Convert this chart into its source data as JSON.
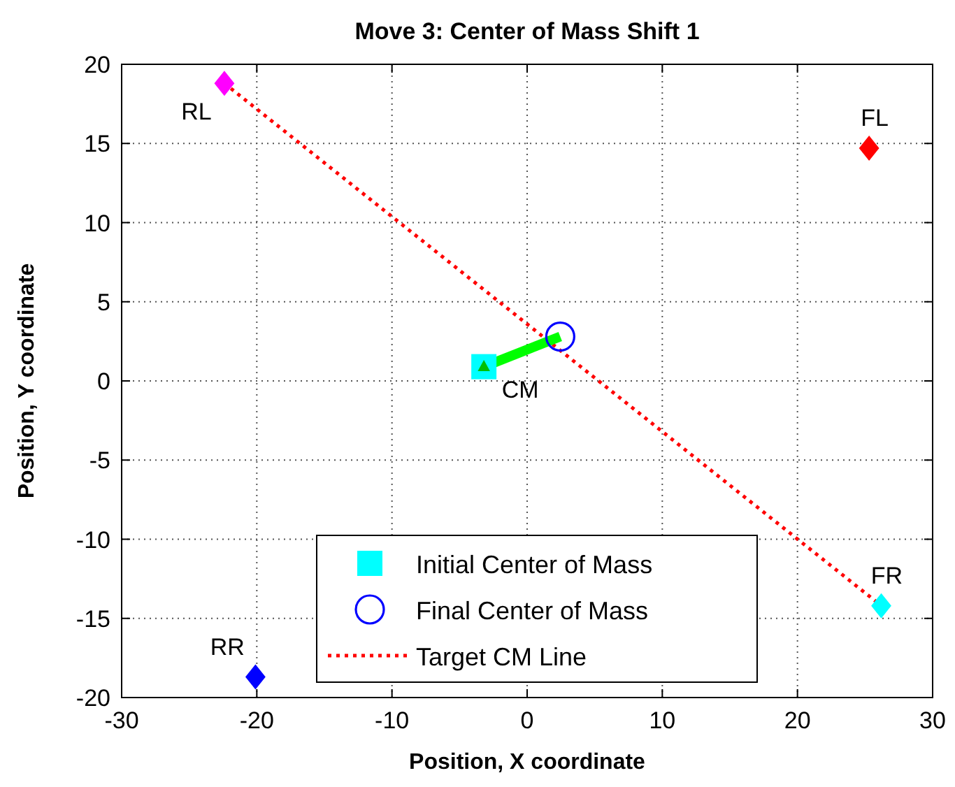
{
  "chart_data": {
    "type": "scatter",
    "title": "Move 3: Center of Mass Shift 1",
    "xlabel": "Position, X coordinate",
    "ylabel": "Position, Y coordinate",
    "xlim": [
      -30,
      30
    ],
    "xticks": [
      -30,
      -20,
      -10,
      0,
      10,
      20,
      30
    ],
    "ylim": [
      -20,
      20
    ],
    "yticks": [
      -20,
      -15,
      -10,
      -5,
      0,
      5,
      10,
      15,
      20
    ],
    "grid": true,
    "legend": "bottom",
    "series": [
      {
        "name": "Initial Center of Mass",
        "marker": "square",
        "color": "#00ffff",
        "x": [
          -3.2
        ],
        "values": [
          0.9
        ]
      },
      {
        "name": "Final Center of Mass",
        "marker": "circle",
        "color": "#0000ff",
        "x": [
          2.45
        ],
        "values": [
          2.8
        ]
      },
      {
        "name": "Target CM Line",
        "type": "line",
        "line_style": "dotted",
        "color": "#ff0000",
        "x": [
          -22.4,
          26.2
        ],
        "values": [
          18.8,
          -14.2
        ]
      },
      {
        "type": "line",
        "line_style": "solid",
        "color": "#00ff00",
        "x": [
          -3.2,
          2.45
        ],
        "values": [
          0.9,
          2.8
        ]
      },
      {
        "marker": "triangle",
        "color": "#00c000",
        "x": [
          -3.2
        ],
        "values": [
          0.9
        ]
      },
      {
        "marker": "diamond",
        "colors": [
          "#ff00ff",
          "#ff0000",
          "#0000ff",
          "#00ffff"
        ],
        "x": [
          -22.4,
          25.3,
          -20.1,
          26.2
        ],
        "values": [
          18.8,
          14.7,
          -18.7,
          -14.2
        ]
      }
    ],
    "annotations": [
      {
        "text": "RL",
        "x": -22.4,
        "y": 18.8
      },
      {
        "text": "FL",
        "x": 25.3,
        "y": 14.7
      },
      {
        "text": "RR",
        "x": -20.1,
        "y": -18.7
      },
      {
        "text": "FR",
        "x": 26.2,
        "y": -14.2
      },
      {
        "text": "CM",
        "x": -3.2,
        "y": 0.9
      }
    ]
  }
}
